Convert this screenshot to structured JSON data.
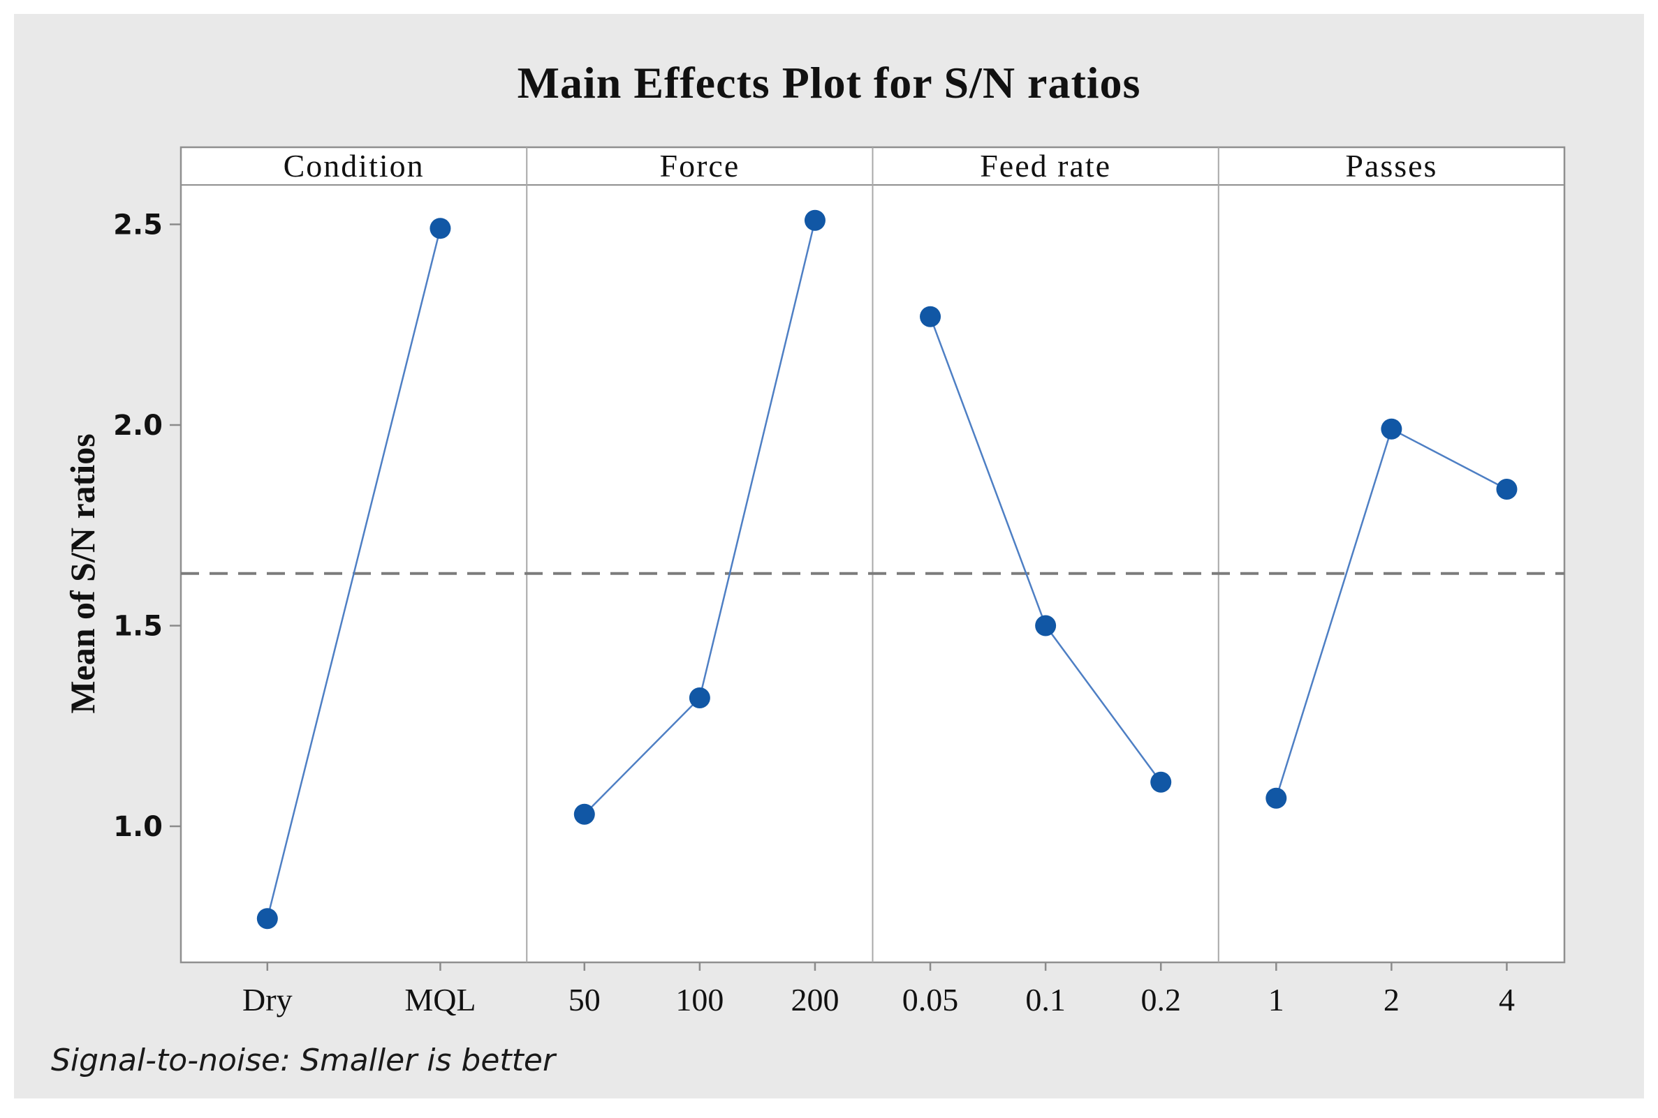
{
  "chart_data": {
    "type": "line",
    "title": "Main Effects Plot for S/N ratios",
    "ylabel": "Mean of S/N ratios",
    "footnote": "Signal-to-noise: Smaller is better",
    "y_ticks": [
      {
        "v": 1.0,
        "label": "1.0"
      },
      {
        "v": 1.5,
        "label": "1.5"
      },
      {
        "v": 2.0,
        "label": "2.0"
      },
      {
        "v": 2.5,
        "label": "2.5"
      }
    ],
    "ylim": [
      0.66,
      2.6
    ],
    "reference_line": 1.63,
    "grid": false,
    "legend": "none",
    "panels": [
      {
        "label": "Condition",
        "categories": [
          "Dry",
          "MQL"
        ],
        "values": [
          0.77,
          2.49
        ]
      },
      {
        "label": "Force",
        "categories": [
          "50",
          "100",
          "200"
        ],
        "values": [
          1.03,
          1.32,
          2.51
        ]
      },
      {
        "label": "Feed rate",
        "categories": [
          "0.05",
          "0.1",
          "0.2"
        ],
        "values": [
          2.27,
          1.5,
          1.11
        ]
      },
      {
        "label": "Passes",
        "categories": [
          "1",
          "2",
          "4"
        ],
        "values": [
          1.07,
          1.99,
          1.84
        ]
      }
    ]
  },
  "colors": {
    "page_background": "#ffffff",
    "graph_background": "#e9e9e9",
    "plot_background": "#ffffff",
    "frame": "#8f8f8f",
    "panel_separator": "#a8a8a8",
    "tick": "#8a8a8a",
    "reference_line": "#7b7b7b",
    "series_line": "#4e7fc4",
    "marker": "#1157a5",
    "text": "#111111"
  }
}
